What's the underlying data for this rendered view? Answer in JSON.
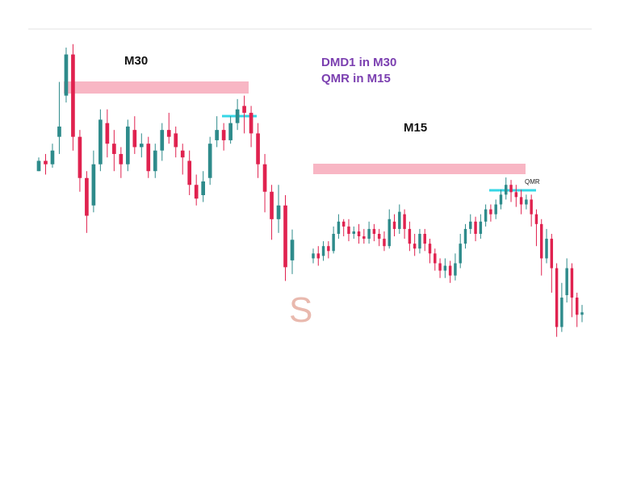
{
  "labels": {
    "left_timeframe": "M30",
    "right_timeframe": "M15",
    "note_line1": "DMD1 in M30",
    "note_line2": "QMR in M15",
    "qmr_tag": "QMR",
    "watermark": "S"
  },
  "colors": {
    "bull": "#2e8b8b",
    "bear": "#e0224f",
    "zone": "#f8b6c4",
    "marker": "#36d7e6",
    "note": "#7b3fb0",
    "divider": "#e0e0e0"
  },
  "chart_data": [
    {
      "type": "candlestick",
      "name": "M30",
      "title": "M30",
      "xlabel": "",
      "ylabel": "",
      "grid": false,
      "candles": [
        [
          50,
          53,
          50,
          54,
          48
        ],
        [
          53,
          52,
          49,
          55,
          49
        ],
        [
          52,
          56,
          51,
          58,
          42
        ],
        [
          60,
          63,
          55,
          76,
          44
        ],
        [
          72,
          84,
          70,
          86,
          65
        ],
        [
          84,
          60,
          56,
          87,
          55
        ],
        [
          60,
          48,
          44,
          62,
          35
        ],
        [
          48,
          37,
          32,
          50,
          23
        ],
        [
          40,
          52,
          38,
          56,
          30
        ],
        [
          52,
          65,
          50,
          68,
          44
        ],
        [
          64,
          58,
          54,
          68,
          50
        ],
        [
          58,
          55,
          50,
          62,
          49
        ],
        [
          55,
          52,
          48,
          57,
          46
        ],
        [
          52,
          63,
          50,
          65,
          45
        ],
        [
          62,
          57,
          55,
          66,
          53
        ],
        [
          57,
          58,
          54,
          61,
          53
        ],
        [
          58,
          50,
          48,
          60,
          47
        ],
        [
          50,
          56,
          48,
          58,
          46
        ],
        [
          56,
          62,
          53,
          64,
          53
        ],
        [
          62,
          60,
          58,
          67,
          56
        ],
        [
          61,
          57,
          54,
          63,
          53
        ],
        [
          56,
          54,
          49,
          58,
          46
        ],
        [
          53,
          46,
          43,
          56,
          41
        ],
        [
          46,
          42,
          40,
          49,
          39
        ],
        [
          43,
          47,
          41,
          50,
          39
        ],
        [
          48,
          58,
          46,
          60,
          44
        ],
        [
          59,
          62,
          57,
          66,
          55
        ],
        [
          62,
          59,
          56,
          64,
          54
        ],
        [
          59,
          64,
          58,
          66,
          55
        ],
        [
          64,
          68,
          62,
          71,
          60
        ],
        [
          69,
          67,
          61,
          72,
          60
        ],
        [
          67,
          61,
          57,
          69,
          55
        ],
        [
          61,
          52,
          48,
          64,
          46
        ],
        [
          52,
          44,
          38,
          55,
          20
        ],
        [
          44,
          36,
          30,
          46,
          22
        ],
        [
          36,
          40,
          32,
          46,
          30
        ],
        [
          40,
          22,
          18,
          43,
          12
        ],
        [
          24,
          30,
          20,
          33,
          18
        ]
      ]
    },
    {
      "type": "candlestick",
      "name": "M15",
      "title": "M15",
      "xlabel": "",
      "ylabel": "",
      "grid": false,
      "candles": [
        [
          40,
          42,
          38,
          44,
          36
        ],
        [
          42,
          40,
          37,
          45,
          36
        ],
        [
          41,
          45,
          39,
          47,
          38
        ],
        [
          45,
          43,
          40,
          47,
          39
        ],
        [
          43,
          50,
          42,
          53,
          41
        ],
        [
          50,
          55,
          48,
          58,
          47
        ],
        [
          55,
          53,
          49,
          56,
          48
        ],
        [
          53,
          50,
          47,
          56,
          46
        ],
        [
          50,
          51,
          48,
          53,
          47
        ],
        [
          51,
          49,
          46,
          54,
          45
        ],
        [
          49,
          48,
          46,
          52,
          44
        ],
        [
          48,
          52,
          46,
          55,
          45
        ],
        [
          52,
          50,
          47,
          54,
          46
        ],
        [
          50,
          48,
          45,
          52,
          44
        ],
        [
          48,
          45,
          43,
          51,
          42
        ],
        [
          45,
          56,
          44,
          60,
          43
        ],
        [
          55,
          52,
          49,
          58,
          47
        ],
        [
          52,
          59,
          50,
          62,
          48
        ],
        [
          58,
          52,
          48,
          60,
          45
        ],
        [
          52,
          46,
          43,
          55,
          42
        ],
        [
          46,
          44,
          41,
          50,
          40
        ],
        [
          44,
          50,
          42,
          52,
          41
        ],
        [
          50,
          46,
          43,
          52,
          41
        ],
        [
          46,
          42,
          38,
          48,
          36
        ],
        [
          42,
          38,
          35,
          44,
          33
        ],
        [
          38,
          35,
          32,
          40,
          31
        ],
        [
          35,
          37,
          32,
          40,
          30
        ],
        [
          37,
          33,
          30,
          39,
          29
        ],
        [
          33,
          38,
          31,
          42,
          30
        ],
        [
          38,
          46,
          36,
          50,
          35
        ],
        [
          46,
          52,
          44,
          54,
          43
        ],
        [
          52,
          55,
          50,
          58,
          48
        ],
        [
          55,
          50,
          47,
          57,
          46
        ],
        [
          50,
          55,
          48,
          58,
          47
        ],
        [
          55,
          60,
          53,
          62,
          52
        ],
        [
          60,
          58,
          55,
          62,
          54
        ],
        [
          58,
          62,
          56,
          64,
          55
        ],
        [
          62,
          66,
          60,
          68,
          58
        ],
        [
          66,
          70,
          64,
          73,
          62
        ],
        [
          70,
          67,
          63,
          72,
          62
        ],
        [
          67,
          65,
          61,
          70,
          60
        ],
        [
          65,
          62,
          58,
          68,
          57
        ],
        [
          62,
          64,
          60,
          66,
          58
        ],
        [
          64,
          58,
          53,
          66,
          52
        ],
        [
          58,
          54,
          45,
          60,
          38
        ],
        [
          54,
          40,
          33,
          56,
          30
        ],
        [
          40,
          48,
          38,
          52,
          36
        ],
        [
          48,
          36,
          26,
          50,
          18
        ],
        [
          36,
          12,
          8,
          38,
          6
        ],
        [
          12,
          24,
          10,
          30,
          8
        ],
        [
          25,
          36,
          22,
          40,
          20
        ],
        [
          36,
          24,
          16,
          38,
          12
        ],
        [
          24,
          17,
          12,
          26,
          10
        ],
        [
          17,
          18,
          14,
          21,
          12
        ]
      ]
    }
  ]
}
